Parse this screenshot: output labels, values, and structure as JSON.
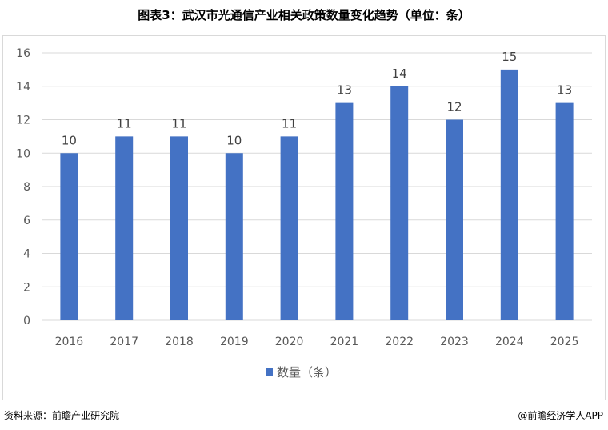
{
  "title": "图表3：武汉市光通信产业相关政策数量变化趋势（单位：条）",
  "source_label": "资料来源：前瞻产业研究院",
  "watermark_credit": "@前瞻经济学人APP",
  "colors": {
    "bar": "#4472c4",
    "grid": "#d9d9d9",
    "axis_text": "#595959"
  },
  "chart_data": {
    "type": "bar",
    "categories": [
      "2016",
      "2017",
      "2018",
      "2019",
      "2020",
      "2021",
      "2022",
      "2023",
      "2024",
      "2025"
    ],
    "series": [
      {
        "name": "数量（条）",
        "values": [
          10,
          11,
          11,
          10,
          11,
          13,
          14,
          12,
          15,
          13
        ]
      }
    ],
    "ylim": [
      0,
      16
    ],
    "yticks": [
      0,
      2,
      4,
      6,
      8,
      10,
      12,
      14,
      16
    ],
    "grid": true,
    "legend": "bottom-center",
    "data_labels": true
  }
}
